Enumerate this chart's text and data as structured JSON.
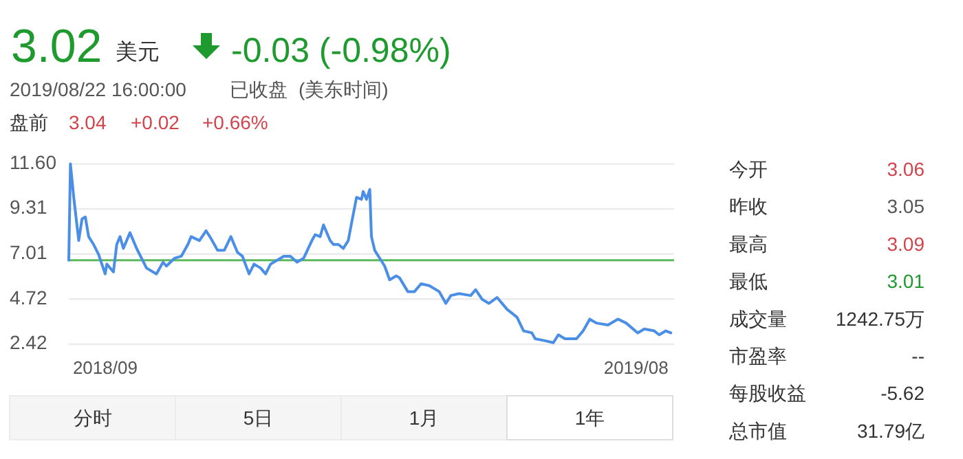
{
  "chart_data": [
    {
      "type": "other",
      "annotations": [
        "3.02",
        "美元",
        "-0.03 (-0.98%)",
        "2019/08/22 16:00:00",
        "已收盘",
        "(美东时间)",
        "盘前",
        "3.04",
        "+0.02",
        "+0.66%"
      ]
    },
    {
      "type": "line",
      "x": [
        "2018-08-22",
        "2018-08-23",
        "2018-08-25",
        "2018-08-28",
        "2018-08-30",
        "2018-09-01",
        "2018-09-03",
        "2018-09-06",
        "2018-09-09",
        "2018-09-13",
        "2018-09-14",
        "2018-09-18",
        "2018-09-20",
        "2018-09-22",
        "2018-09-24",
        "2018-09-28",
        "2018-10-02",
        "2018-10-08",
        "2018-10-14",
        "2018-10-18",
        "2018-10-20",
        "2018-10-25",
        "2018-10-29",
        "2018-11-02",
        "2018-11-04",
        "2018-11-09",
        "2018-11-13",
        "2018-11-16",
        "2018-11-20",
        "2018-11-24",
        "2018-11-28",
        "2018-12-02",
        "2018-12-05",
        "2018-12-09",
        "2018-12-12",
        "2018-12-16",
        "2018-12-19",
        "2018-12-22",
        "2018-12-24",
        "2018-12-30",
        "2019-01-03",
        "2019-01-07",
        "2019-01-11",
        "2019-01-16",
        "2019-01-18",
        "2019-01-21",
        "2019-01-23",
        "2019-01-27",
        "2019-01-29",
        "2019-02-01",
        "2019-02-04",
        "2019-02-07",
        "2019-02-09",
        "2019-02-12",
        "2019-02-15",
        "2019-02-16",
        "2019-02-18",
        "2019-02-20",
        "2019-02-21",
        "2019-02-23",
        "2019-02-26",
        "2019-03-01",
        "2019-03-04",
        "2019-03-08",
        "2019-03-10",
        "2019-03-15",
        "2019-03-19",
        "2019-03-23",
        "2019-03-28",
        "2019-04-03",
        "2019-04-07",
        "2019-04-10",
        "2019-04-15",
        "2019-04-22",
        "2019-04-25",
        "2019-04-29",
        "2019-05-03",
        "2019-05-08",
        "2019-05-14",
        "2019-05-20",
        "2019-05-24",
        "2019-05-29",
        "2019-05-31",
        "2019-06-06",
        "2019-06-11",
        "2019-06-14",
        "2019-06-18",
        "2019-06-25",
        "2019-06-29",
        "2019-07-03",
        "2019-07-07",
        "2019-07-14",
        "2019-07-20",
        "2019-07-25",
        "2019-08-01",
        "2019-08-05",
        "2019-08-11",
        "2019-08-14",
        "2019-08-18",
        "2019-08-21"
      ],
      "series": [
        {
          "color": "#4a8ee6",
          "values": [
            6.7,
            11.6,
            9.9,
            7.7,
            8.8,
            8.9,
            7.9,
            7.5,
            7.0,
            6.0,
            6.5,
            6.1,
            7.5,
            7.9,
            7.3,
            8.1,
            7.3,
            6.3,
            6.0,
            6.6,
            6.4,
            6.8,
            6.9,
            7.5,
            7.9,
            7.7,
            8.2,
            7.8,
            7.2,
            7.2,
            7.9,
            7.1,
            6.9,
            6.0,
            6.5,
            6.3,
            6.0,
            6.5,
            6.6,
            6.9,
            6.9,
            6.6,
            6.8,
            7.7,
            8.0,
            7.9,
            8.5,
            7.7,
            7.5,
            7.5,
            7.3,
            7.7,
            8.6,
            9.9,
            9.8,
            10.2,
            9.8,
            10.3,
            7.9,
            7.2,
            6.8,
            6.4,
            5.7,
            5.9,
            5.8,
            5.1,
            5.1,
            5.5,
            5.4,
            5.1,
            4.5,
            4.9,
            5.0,
            4.9,
            5.2,
            4.7,
            4.5,
            4.8,
            4.2,
            3.8,
            3.1,
            3.0,
            2.7,
            2.6,
            2.5,
            2.9,
            2.7,
            2.7,
            3.1,
            3.7,
            3.5,
            3.4,
            3.7,
            3.5,
            3.0,
            3.2,
            3.1,
            2.9,
            3.1,
            3.0
          ]
        }
      ],
      "xlim": [
        "2018-08-22",
        "2019-08-23"
      ],
      "xticks": [
        {
          "value": "2018-09-13",
          "label": "2018/09"
        },
        {
          "value": "2019-07-31",
          "label": "2019/08"
        }
      ],
      "ylim": [
        2.42,
        11.6
      ],
      "yticks": [
        {
          "value": 11.6,
          "label": "11.60"
        },
        9.31,
        7.01,
        4.72,
        2.42
      ],
      "grid": "y",
      "ref_lines": [
        {
          "axis": "y",
          "value": 6.7,
          "color": "#5cb85c"
        }
      ]
    },
    {
      "type": "other",
      "annotations": [
        "今开",
        "3.06",
        "昨收",
        "3.05",
        "最高",
        "3.09",
        "最低",
        "3.01",
        "成交量",
        "1242.75万",
        "市盈率",
        "--",
        "每股收益",
        "-5.62",
        "总市值",
        "31.79亿"
      ]
    },
    {
      "type": "other",
      "annotations": [
        "分时",
        "5日",
        "1月",
        "1年"
      ]
    }
  ]
}
